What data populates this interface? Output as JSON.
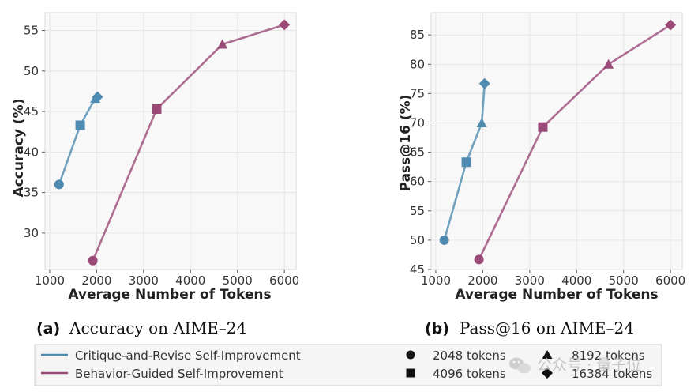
{
  "chart_data": [
    {
      "type": "line",
      "caption_tag": "(a)",
      "caption": "Accuracy on AIME–24",
      "xlabel": "Average Number of Tokens",
      "ylabel": "Accuracy (%)",
      "xlim": [
        900,
        6250
      ],
      "ylim": [
        25.5,
        57.2
      ],
      "xticks": [
        1000,
        2000,
        3000,
        4000,
        5000,
        6000
      ],
      "yticks": [
        30,
        35,
        40,
        45,
        50,
        55
      ],
      "grid": true,
      "series": [
        {
          "name": "Critique-and-Revise Self-Improvement",
          "color": "#4f8bb0",
          "x": [
            1200,
            1650,
            1970,
            2020
          ],
          "y": [
            36.0,
            43.3,
            46.6,
            46.8
          ],
          "markers": [
            "circle",
            "square",
            "triangle",
            "diamond"
          ]
        },
        {
          "name": "Behavior-Guided Self-Improvement",
          "color": "#9b4a78",
          "x": [
            1920,
            3280,
            4680,
            6000
          ],
          "y": [
            26.6,
            45.3,
            53.3,
            55.7
          ],
          "markers": [
            "circle",
            "square",
            "triangle",
            "diamond"
          ]
        }
      ]
    },
    {
      "type": "line",
      "caption_tag": "(b)",
      "caption": "Pass@16 on AIME–24",
      "xlabel": "Average Number of Tokens",
      "ylabel": "Pass@16 (%)",
      "xlim": [
        900,
        6250
      ],
      "ylim": [
        45,
        88.8
      ],
      "xticks": [
        1000,
        2000,
        3000,
        4000,
        5000,
        6000
      ],
      "yticks": [
        45,
        50,
        55,
        60,
        65,
        70,
        75,
        80,
        85
      ],
      "grid": true,
      "series": [
        {
          "name": "Critique-and-Revise Self-Improvement",
          "color": "#4f8bb0",
          "x": [
            1180,
            1650,
            1980,
            2040
          ],
          "y": [
            50.0,
            63.3,
            70.0,
            76.7
          ],
          "markers": [
            "circle",
            "square",
            "triangle",
            "diamond"
          ]
        },
        {
          "name": "Behavior-Guided Self-Improvement",
          "color": "#9b4a78",
          "x": [
            1920,
            3280,
            4680,
            6000
          ],
          "y": [
            46.7,
            69.3,
            80.0,
            86.7
          ],
          "markers": [
            "circle",
            "square",
            "triangle",
            "diamond"
          ]
        }
      ]
    }
  ],
  "legend": {
    "lines": [
      {
        "label": "Critique-and-Revise Self-Improvement",
        "color": "#4f8bb0"
      },
      {
        "label": "Behavior-Guided Self-Improvement",
        "color": "#9b4a78"
      }
    ],
    "markers": [
      {
        "shape": "circle",
        "label": "2048 tokens"
      },
      {
        "shape": "square",
        "label": "4096 tokens"
      },
      {
        "shape": "triangle",
        "label": "8192 tokens"
      },
      {
        "shape": "diamond",
        "label": "16384 tokens"
      }
    ]
  },
  "watermark": "公众号 · 量子位"
}
